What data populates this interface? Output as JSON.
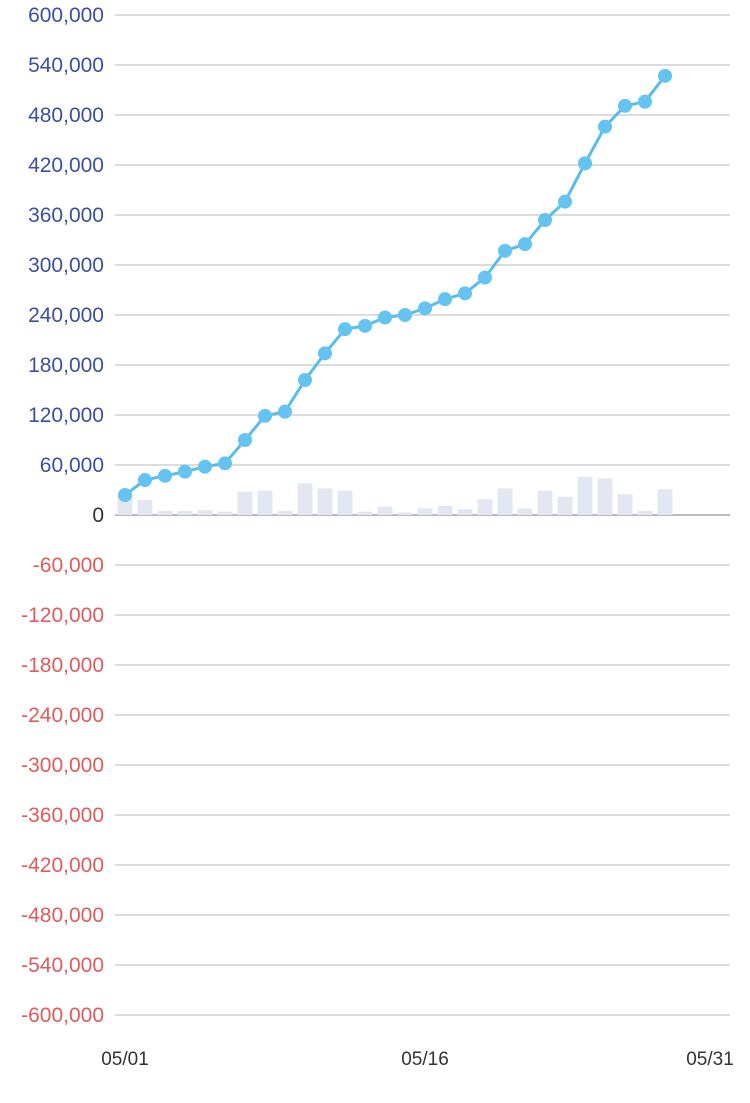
{
  "colors": {
    "grid": "#dcdcdc",
    "zero_line": "#bbbbbb",
    "line": "#5bbcea",
    "point": "#64c3f0",
    "bar": "#e3e7f1",
    "positive_label": "#3c4fa0",
    "negative_label": "#e05b5b",
    "zero_label": "#333333"
  },
  "chart_data": {
    "type": "line",
    "title": "",
    "xlabel": "",
    "ylabel": "",
    "ylim": [
      -600000,
      600000
    ],
    "y_ticks": [
      "600,000",
      "540,000",
      "480,000",
      "420,000",
      "360,000",
      "300,000",
      "240,000",
      "180,000",
      "120,000",
      "60,000",
      "0",
      "-60,000",
      "-120,000",
      "-180,000",
      "-240,000",
      "-300,000",
      "-360,000",
      "-420,000",
      "-480,000",
      "-540,000",
      "-600,000"
    ],
    "y_tick_values": [
      600000,
      540000,
      480000,
      420000,
      360000,
      300000,
      240000,
      180000,
      120000,
      60000,
      0,
      -60000,
      -120000,
      -180000,
      -240000,
      -300000,
      -360000,
      -420000,
      -480000,
      -540000,
      -600000
    ],
    "x_ticks": [
      "05/01",
      "05/16",
      "05/31"
    ],
    "grid": true,
    "x": [
      "05/01",
      "05/02",
      "05/03",
      "05/04",
      "05/05",
      "05/06",
      "05/07",
      "05/08",
      "05/09",
      "05/10",
      "05/11",
      "05/12",
      "05/13",
      "05/14",
      "05/15",
      "05/16",
      "05/17",
      "05/18",
      "05/19",
      "05/20",
      "05/21",
      "05/22",
      "05/23",
      "05/24",
      "05/25",
      "05/26",
      "05/27",
      "05/28"
    ],
    "series": [
      {
        "type": "line",
        "values": [
          24000,
          42000,
          47000,
          52000,
          58000,
          62000,
          90000,
          119000,
          124000,
          162000,
          194000,
          223000,
          227000,
          237000,
          240000,
          248000,
          259000,
          266000,
          285000,
          317000,
          325000,
          354000,
          376000,
          422000,
          466000,
          491000,
          496000,
          527000
        ]
      },
      {
        "type": "bar",
        "values": [
          24000,
          18000,
          5000,
          5000,
          6000,
          4000,
          28000,
          29000,
          5000,
          38000,
          32000,
          29000,
          4000,
          10000,
          3000,
          8000,
          11000,
          7000,
          19000,
          32000,
          8000,
          29000,
          22000,
          46000,
          44000,
          25000,
          5000,
          31000
        ]
      }
    ]
  }
}
